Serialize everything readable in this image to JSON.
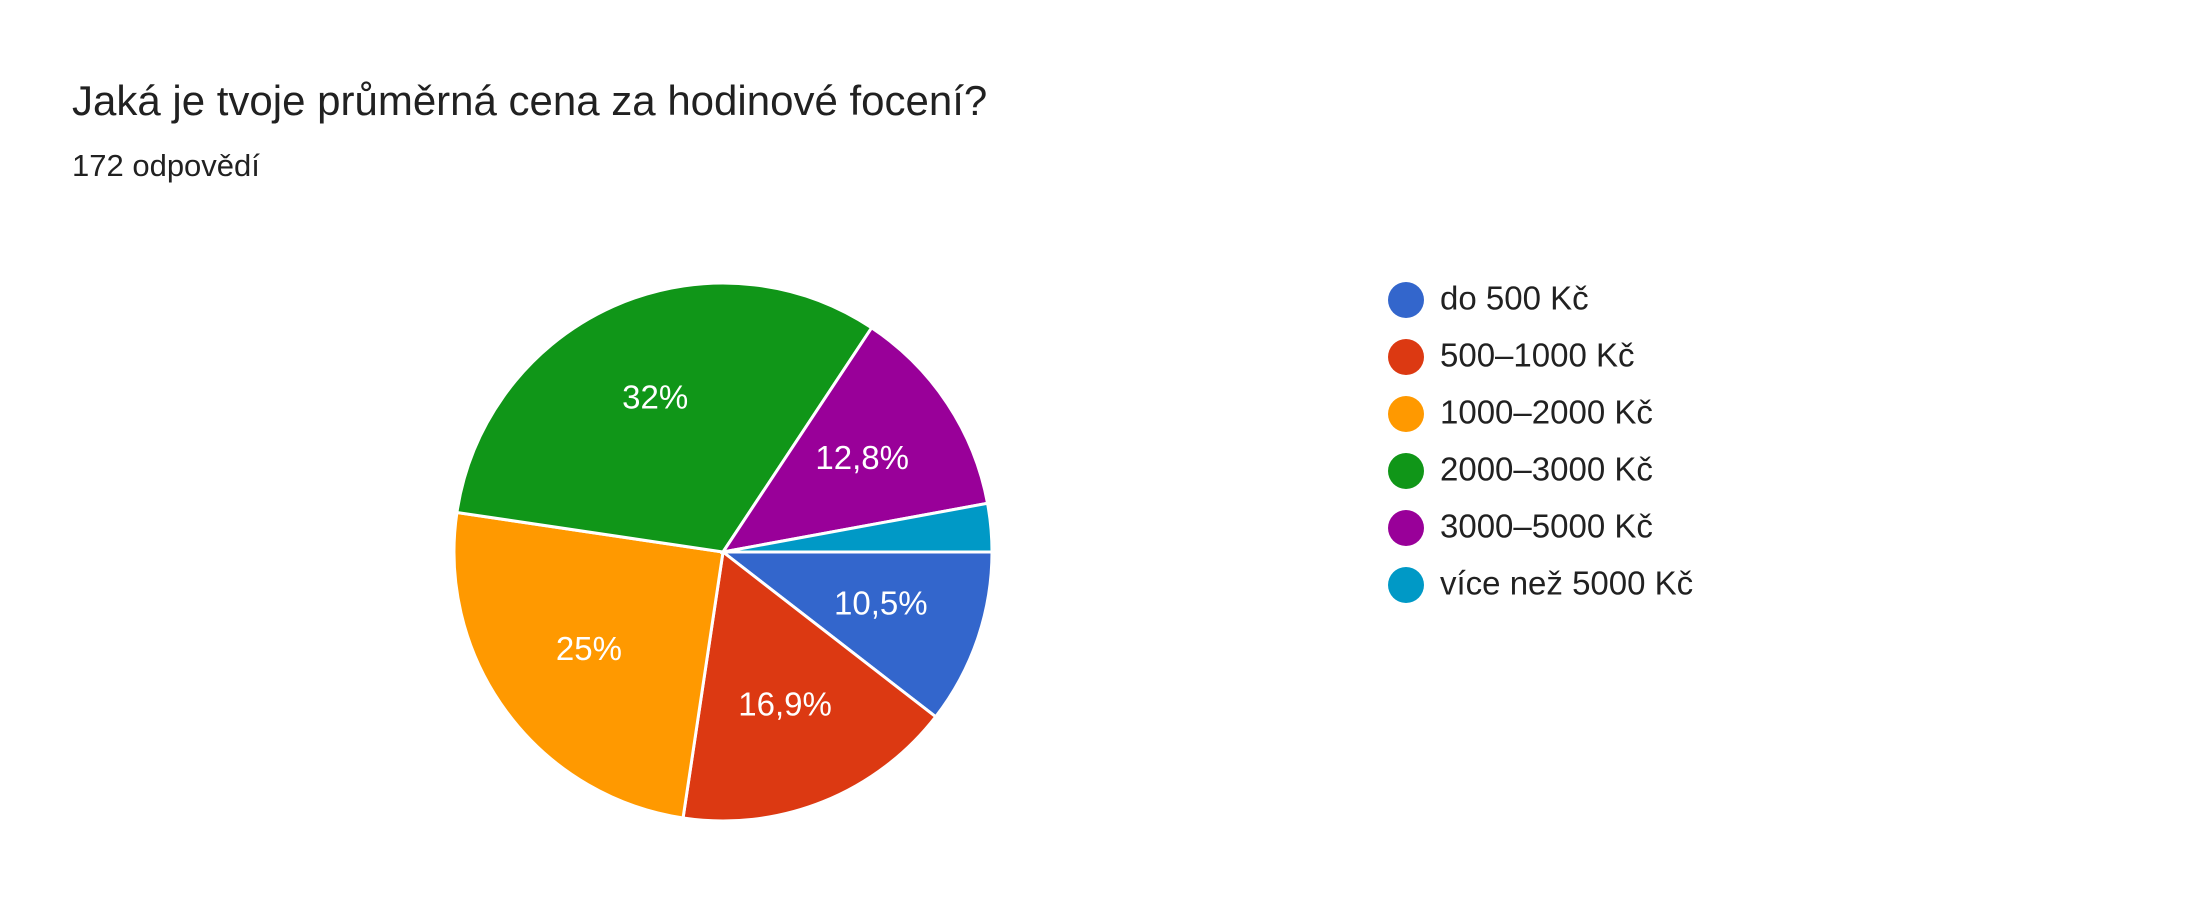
{
  "chart_data": {
    "type": "pie",
    "title": "Jaká je tvoje průměrná cena za hodinové focení?",
    "subtitle": "172 odpovědí",
    "categories": [
      "do 500 Kč",
      "500–1000 Kč",
      "1000–2000 Kč",
      "2000–3000 Kč",
      "3000–5000 Kč",
      "více než 5000 Kč"
    ],
    "values": [
      10.5,
      16.9,
      25,
      32,
      12.8,
      2.9
    ],
    "value_labels": [
      "10,5%",
      "16,9%",
      "25%",
      "32%",
      "12,8%",
      null
    ],
    "colors": [
      "#3366cc",
      "#dc3912",
      "#ff9900",
      "#109618",
      "#990099",
      "#0099c6"
    ],
    "legend": "right"
  }
}
